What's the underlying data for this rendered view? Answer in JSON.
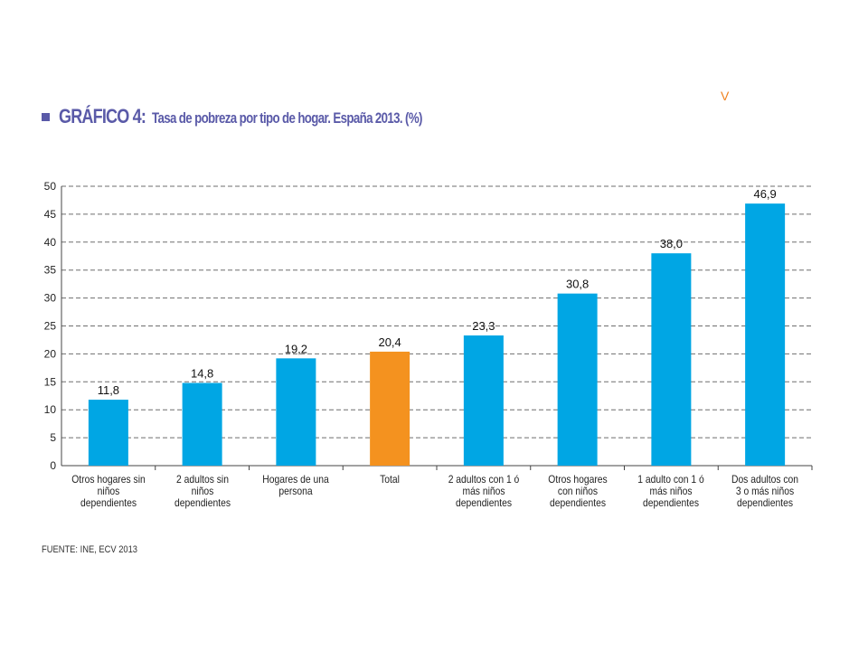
{
  "header": {
    "label": "GRÁFICO 4:",
    "title": "Tasa de pobreza por tipo de hogar. España 2013. (%)"
  },
  "corner_mark": "V",
  "source": "FUENTE: INE, ECV 2013",
  "colors": {
    "default_bar": "#00a6e4",
    "highlight_bar": "#f4921f",
    "title": "#5a5aa8",
    "grid": "#6e6e6e"
  },
  "chart_data": {
    "type": "bar",
    "title": "Tasa de pobreza por tipo de hogar. España 2013. (%)",
    "xlabel": "",
    "ylabel": "",
    "ylim": [
      0,
      50
    ],
    "yticks": [
      0,
      5,
      10,
      15,
      20,
      25,
      30,
      35,
      40,
      45,
      50
    ],
    "grid": true,
    "categories": [
      "Otros hogares sin niños dependientes",
      "2 adultos sin niños dependientes",
      "Hogares de una persona",
      "Total",
      "2 adultos con 1 ó más niños dependientes",
      "Otros hogares con niños dependientes",
      "1 adulto con 1 ó más niños dependientes",
      "Dos adultos con 3 o más niños dependientes"
    ],
    "values": [
      11.8,
      14.8,
      19.2,
      20.4,
      23.3,
      30.8,
      38.0,
      46.9
    ],
    "value_labels": [
      "11,8",
      "14,8",
      "19,2",
      "20,4",
      "23,3",
      "30,8",
      "38,0",
      "46,9"
    ],
    "highlight": "Total"
  }
}
